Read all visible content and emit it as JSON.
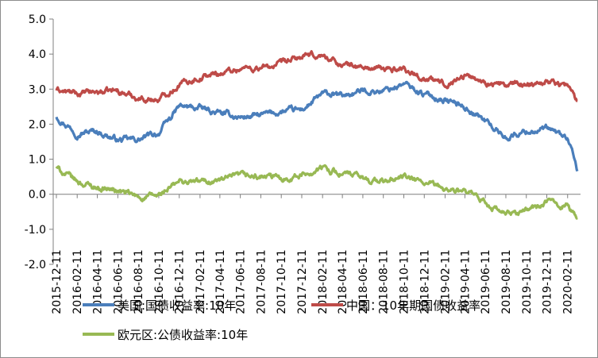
{
  "chart_data": {
    "type": "line",
    "title": "",
    "xlabel": "",
    "ylabel": "",
    "ylim": [
      -2.0,
      5.0
    ],
    "yticks": [
      "5.0",
      "4.0",
      "3.0",
      "2.0",
      "1.0",
      "0.0",
      "-1.0",
      "-2.0"
    ],
    "xticks": [
      "2015-12-11",
      "2016-02-11",
      "2016-04-11",
      "2016-06-11",
      "2016-08-11",
      "2016-10-11",
      "2016-12-11",
      "2017-02-11",
      "2017-04-11",
      "2017-06-11",
      "2017-08-11",
      "2017-10-11",
      "2017-12-11",
      "2018-02-11",
      "2018-04-11",
      "2018-06-11",
      "2018-08-11",
      "2018-10-11",
      "2018-12-11",
      "2019-02-11",
      "2019-04-11",
      "2019-06-11",
      "2019-08-11",
      "2019-10-11",
      "2019-12-11",
      "2020-02-11"
    ],
    "grid": false,
    "legend": "bottom",
    "x_dates": [
      "2015-12-11",
      "2016-02-11",
      "2016-04-11",
      "2016-06-11",
      "2016-08-11",
      "2016-10-11",
      "2016-12-11",
      "2017-02-11",
      "2017-04-11",
      "2017-06-11",
      "2017-08-11",
      "2017-10-11",
      "2017-12-11",
      "2018-02-11",
      "2018-04-11",
      "2018-06-11",
      "2018-08-11",
      "2018-10-11",
      "2018-12-11",
      "2019-02-11",
      "2019-04-11",
      "2019-06-11",
      "2019-08-11",
      "2019-10-11",
      "2019-12-11",
      "2020-02-11",
      "2020-03-11"
    ],
    "series": [
      {
        "name": "美国:国债收益率:10年",
        "color": "#4a7ebb",
        "values": [
          2.23,
          1.76,
          1.8,
          1.55,
          1.55,
          1.75,
          2.5,
          2.45,
          2.3,
          2.2,
          2.25,
          2.35,
          2.4,
          2.85,
          2.8,
          2.95,
          2.95,
          3.15,
          2.85,
          2.7,
          2.5,
          2.1,
          1.62,
          1.8,
          1.85,
          1.6,
          0.65
        ]
      },
      {
        "name": "中国：10年期国债收益率",
        "color": "#be4b48",
        "values": [
          2.98,
          2.85,
          2.92,
          2.95,
          2.75,
          2.7,
          3.15,
          3.35,
          3.45,
          3.6,
          3.6,
          3.7,
          3.92,
          3.95,
          3.7,
          3.62,
          3.55,
          3.6,
          3.3,
          3.15,
          3.4,
          3.2,
          3.1,
          3.15,
          3.25,
          3.1,
          2.65
        ]
      },
      {
        "name": "欧元区:公债收益率:10年",
        "color": "#98b954",
        "values": [
          0.75,
          0.35,
          0.2,
          0.1,
          -0.1,
          -0.05,
          0.35,
          0.35,
          0.4,
          0.5,
          0.5,
          0.45,
          0.55,
          0.75,
          0.6,
          0.45,
          0.35,
          0.5,
          0.3,
          0.15,
          0.05,
          -0.25,
          -0.6,
          -0.45,
          -0.25,
          -0.3,
          -0.75
        ]
      }
    ]
  }
}
